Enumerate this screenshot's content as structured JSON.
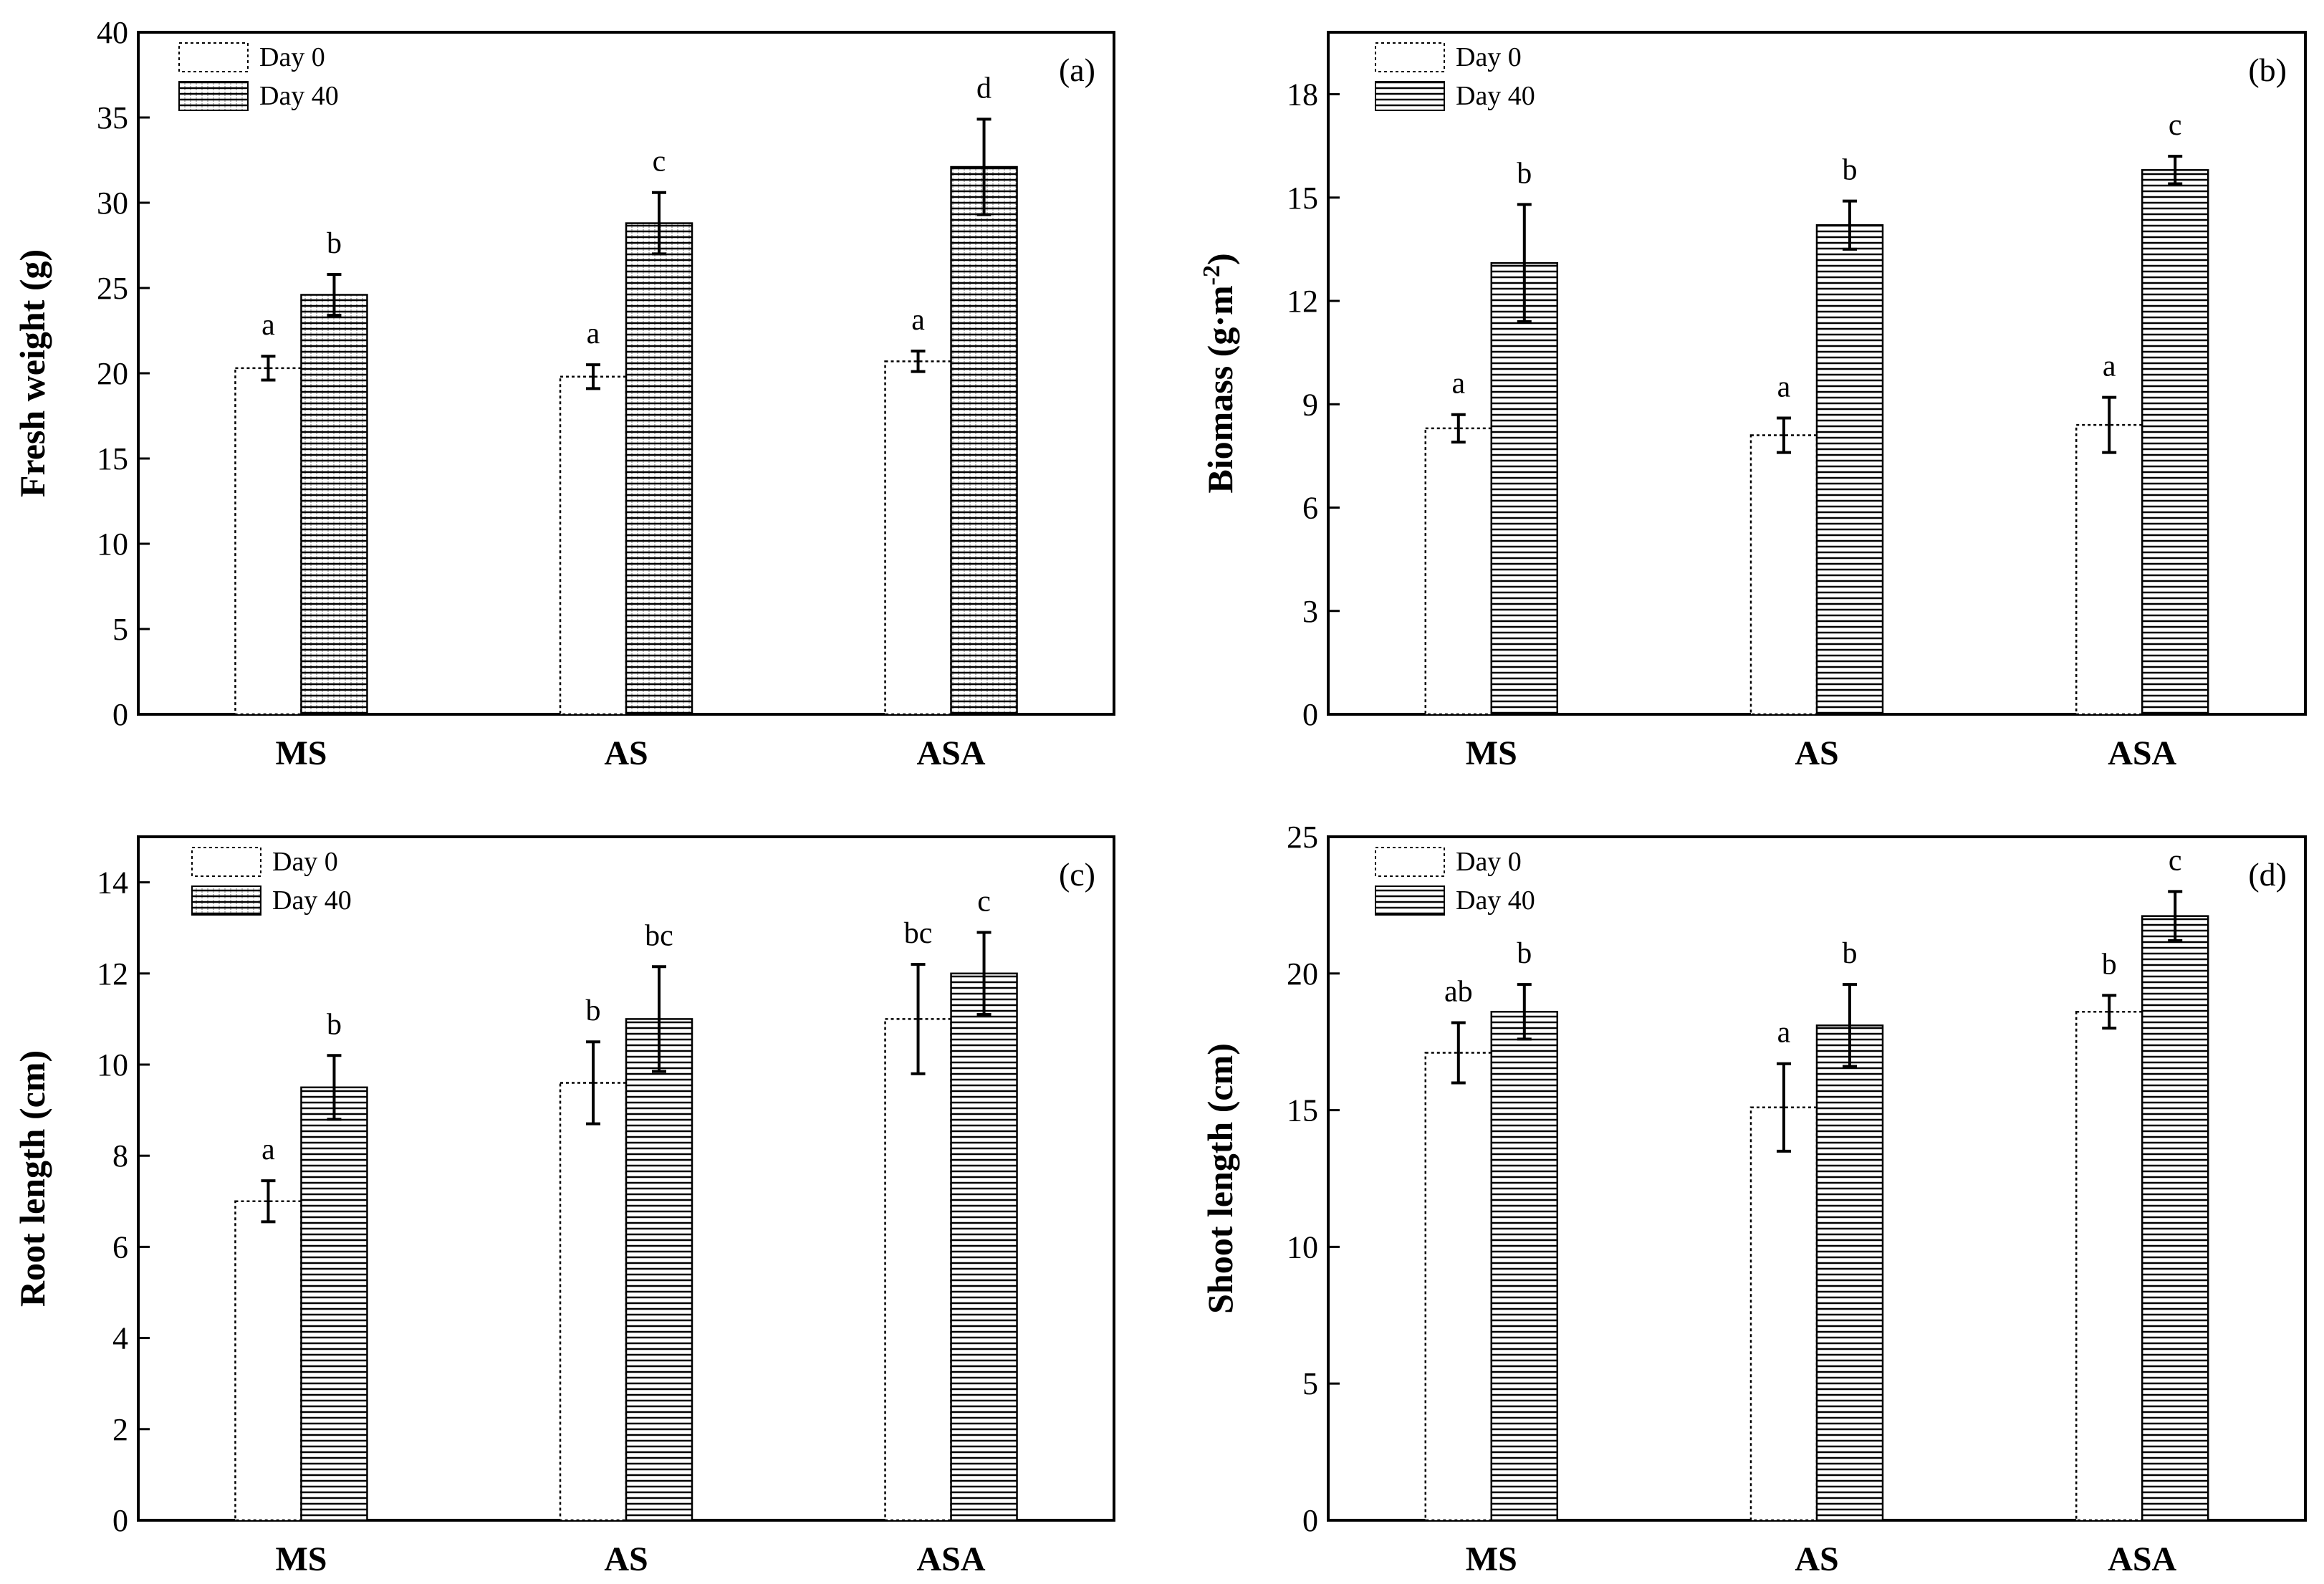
{
  "chart_data": [
    {
      "type": "bar",
      "panel": "(a)",
      "ylabel": "Fresh weight (g)",
      "ylim": [
        0,
        40
      ],
      "yticks": [
        0,
        5,
        10,
        15,
        20,
        25,
        30,
        35,
        40
      ],
      "categories": [
        "MS",
        "AS",
        "ASA"
      ],
      "series": [
        {
          "name": "Day 0",
          "values": [
            20.3,
            19.8,
            20.7
          ],
          "errors": [
            0.7,
            0.7,
            0.6
          ],
          "letters": [
            "a",
            "a",
            "a"
          ]
        },
        {
          "name": "Day 40",
          "values": [
            24.6,
            28.8,
            32.1
          ],
          "errors": [
            1.2,
            1.8,
            2.8
          ],
          "letters": [
            "b",
            "c",
            "d"
          ]
        }
      ]
    },
    {
      "type": "bar",
      "panel": "(b)",
      "ylabel": "Biomass (g·m",
      "ylabel_sup": "-2",
      "ylabel_end": ")",
      "ylim": [
        0,
        19.8
      ],
      "yticks": [
        0,
        3,
        6,
        9,
        12,
        15,
        18
      ],
      "categories": [
        "MS",
        "AS",
        "ASA"
      ],
      "series": [
        {
          "name": "Day 0",
          "values": [
            8.3,
            8.1,
            8.4
          ],
          "errors": [
            0.4,
            0.5,
            0.8
          ],
          "letters": [
            "a",
            "a",
            "a"
          ]
        },
        {
          "name": "Day 40",
          "values": [
            13.1,
            14.2,
            15.8
          ],
          "errors": [
            1.7,
            0.7,
            0.4
          ],
          "letters": [
            "b",
            "b",
            "c"
          ]
        }
      ]
    },
    {
      "type": "bar",
      "panel": "(c)",
      "ylabel": "Root length (cm)",
      "ylim": [
        0,
        15
      ],
      "yticks": [
        0,
        2,
        4,
        6,
        8,
        10,
        12,
        14
      ],
      "categories": [
        "MS",
        "AS",
        "ASA"
      ],
      "series": [
        {
          "name": "Day 0",
          "values": [
            7.0,
            9.6,
            11.0
          ],
          "errors": [
            0.45,
            0.9,
            1.2
          ],
          "letters": [
            "a",
            "b",
            "bc"
          ]
        },
        {
          "name": "Day 40",
          "values": [
            9.5,
            11.0,
            12.0
          ],
          "errors": [
            0.7,
            1.15,
            0.9
          ],
          "letters": [
            "b",
            "bc",
            "c"
          ]
        }
      ]
    },
    {
      "type": "bar",
      "panel": "(d)",
      "ylabel": "Shoot length (cm)",
      "ylim": [
        0,
        25
      ],
      "yticks": [
        0,
        5,
        10,
        15,
        20,
        25
      ],
      "categories": [
        "MS",
        "AS",
        "ASA"
      ],
      "series": [
        {
          "name": "Day 0",
          "values": [
            17.1,
            15.1,
            18.6
          ],
          "errors": [
            1.1,
            1.6,
            0.6
          ],
          "letters": [
            "ab",
            "a",
            "b"
          ]
        },
        {
          "name": "Day 40",
          "values": [
            18.6,
            18.1,
            22.1
          ],
          "errors": [
            1.0,
            1.5,
            0.9
          ],
          "letters": [
            "b",
            "b",
            "c"
          ]
        }
      ]
    }
  ]
}
